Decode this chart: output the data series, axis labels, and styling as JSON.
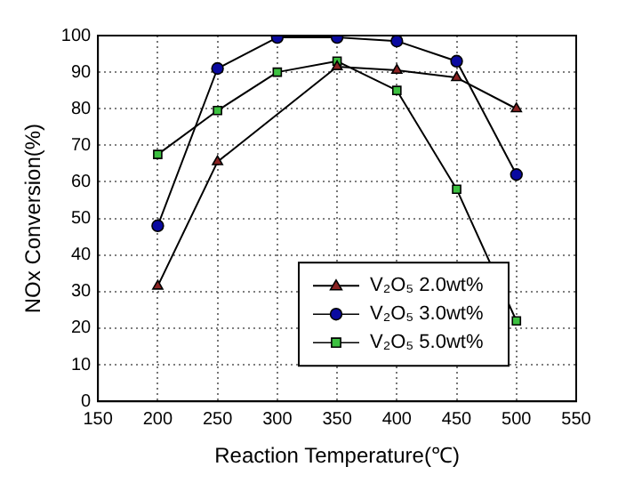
{
  "chart_data": {
    "type": "line",
    "xlabel": "Reaction Temperature(℃)",
    "ylabel": "NOx Conversion(%)",
    "xlim": [
      150,
      550
    ],
    "xticks": [
      150,
      200,
      250,
      300,
      350,
      400,
      450,
      500,
      550
    ],
    "ylim": [
      0,
      100
    ],
    "yticks": [
      0,
      10,
      20,
      30,
      40,
      50,
      60,
      70,
      80,
      90,
      100
    ],
    "grid": true,
    "legend": "bottom right",
    "line_style": "solid",
    "series": [
      {
        "name": "V₂O₅ 2.0wt%",
        "color": "#8b2323",
        "marker": "triangle",
        "x": [
          200,
          250,
          350,
          400,
          450,
          500
        ],
        "values": [
          31.5,
          65.5,
          91.5,
          90.5,
          88.5,
          80
        ]
      },
      {
        "name": "V₂O₅ 3.0wt%",
        "color": "#0a0aa0",
        "marker": "circle",
        "x": [
          200,
          250,
          300,
          350,
          400,
          450,
          500
        ],
        "values": [
          48,
          91,
          99.5,
          99.5,
          98.5,
          93,
          62
        ]
      },
      {
        "name": "V₂O₅ 5.0wt%",
        "color": "#3cc040",
        "marker": "square",
        "x": [
          200,
          250,
          300,
          350,
          400,
          450,
          500
        ],
        "values": [
          67.5,
          79.5,
          90,
          93,
          85,
          58,
          22
        ]
      }
    ]
  }
}
